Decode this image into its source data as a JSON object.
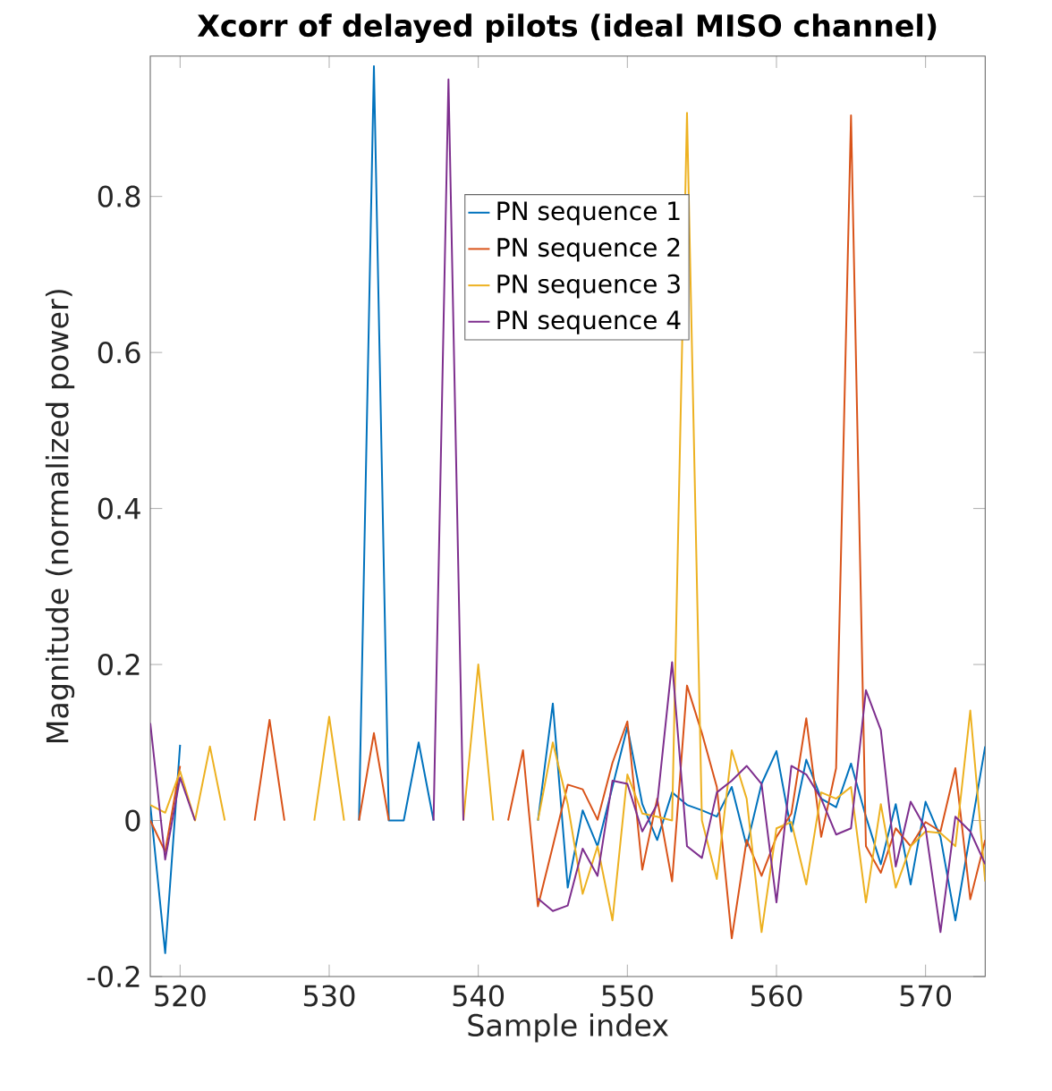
{
  "chart_data": {
    "type": "line",
    "title": "Xcorr of delayed pilots (ideal MISO channel)",
    "xlabel": "Sample index",
    "ylabel": "Magnitude (normalized power)",
    "x": [
      518,
      519,
      520,
      521,
      522,
      523,
      524,
      525,
      526,
      527,
      528,
      529,
      530,
      531,
      532,
      533,
      534,
      535,
      536,
      537,
      538,
      539,
      540,
      541,
      542,
      543,
      544,
      545,
      546,
      547,
      548,
      549,
      550,
      551,
      552,
      553,
      554,
      555,
      556,
      557,
      558,
      559,
      560,
      561,
      562,
      563,
      564,
      565,
      566,
      567,
      568,
      569,
      570,
      571,
      572,
      573,
      574
    ],
    "series": [
      {
        "name": "PN sequence 1",
        "color": "#0072bd",
        "values": [
          0.02,
          -0.17,
          0.097,
          null,
          null,
          null,
          null,
          null,
          null,
          null,
          null,
          null,
          null,
          null,
          0.0,
          0.967,
          0.0,
          0.0,
          0.1,
          0.0,
          null,
          null,
          null,
          null,
          null,
          null,
          0.0,
          0.15,
          -0.086,
          0.013,
          -0.033,
          0.043,
          0.12,
          0.021,
          -0.025,
          0.036,
          0.02,
          0.013,
          0.005,
          0.043,
          -0.033,
          0.047,
          0.089,
          -0.014,
          0.078,
          0.028,
          0.017,
          0.073,
          0.005,
          -0.056,
          0.021,
          -0.082,
          0.024,
          -0.021,
          -0.128,
          -0.017,
          0.095
        ]
      },
      {
        "name": "PN sequence 2",
        "color": "#d95319",
        "values": [
          0.0,
          -0.04,
          0.07,
          null,
          null,
          null,
          null,
          0.0,
          0.129,
          0.0,
          null,
          null,
          null,
          null,
          0.0,
          0.112,
          0.0,
          null,
          null,
          null,
          null,
          null,
          null,
          null,
          0.0,
          0.09,
          -0.11,
          -0.033,
          0.046,
          0.04,
          0.001,
          0.074,
          0.127,
          -0.063,
          0.028,
          -0.078,
          0.173,
          0.112,
          0.043,
          -0.151,
          -0.025,
          -0.071,
          -0.021,
          0.009,
          0.131,
          -0.021,
          0.067,
          0.904,
          -0.033,
          -0.067,
          -0.01,
          -0.033,
          -0.002,
          -0.014,
          0.067,
          -0.101,
          -0.025
        ]
      },
      {
        "name": "PN sequence 3",
        "color": "#edb120",
        "values": [
          0.02,
          0.01,
          0.063,
          0.0,
          0.095,
          0.0,
          null,
          null,
          null,
          null,
          null,
          0.0,
          0.133,
          0.0,
          null,
          null,
          null,
          null,
          null,
          null,
          null,
          0.0,
          0.2,
          0.0,
          null,
          null,
          0.0,
          0.1,
          0.021,
          -0.094,
          -0.033,
          -0.128,
          0.059,
          0.009,
          0.005,
          0.0,
          0.907,
          0.0,
          -0.075,
          0.09,
          0.028,
          -0.143,
          -0.01,
          -0.002,
          -0.082,
          0.036,
          0.028,
          0.043,
          -0.105,
          0.021,
          -0.086,
          -0.033,
          -0.014,
          -0.016,
          -0.033,
          0.141,
          -0.078
        ]
      },
      {
        "name": "PN sequence 4",
        "color": "#7e2f8e",
        "values": [
          0.125,
          -0.05,
          0.055,
          0.0,
          null,
          null,
          null,
          null,
          null,
          null,
          null,
          null,
          null,
          null,
          null,
          null,
          null,
          null,
          null,
          0.0,
          0.95,
          0.0,
          null,
          null,
          null,
          null,
          -0.1,
          -0.116,
          -0.109,
          -0.036,
          -0.071,
          0.051,
          0.047,
          -0.014,
          0.021,
          0.203,
          -0.033,
          -0.048,
          0.036,
          0.051,
          0.07,
          0.047,
          -0.105,
          0.07,
          0.059,
          0.028,
          -0.018,
          -0.01,
          0.167,
          0.116,
          -0.059,
          0.024,
          -0.01,
          -0.143,
          0.005,
          -0.014,
          -0.056
        ]
      }
    ],
    "xlim": [
      518,
      574
    ],
    "ylim": [
      -0.2,
      0.98
    ],
    "xticks": [
      520,
      530,
      540,
      550,
      560,
      570
    ],
    "yticks": [
      -0.2,
      0,
      0.2,
      0.4,
      0.6,
      0.8
    ],
    "legend": "top"
  }
}
